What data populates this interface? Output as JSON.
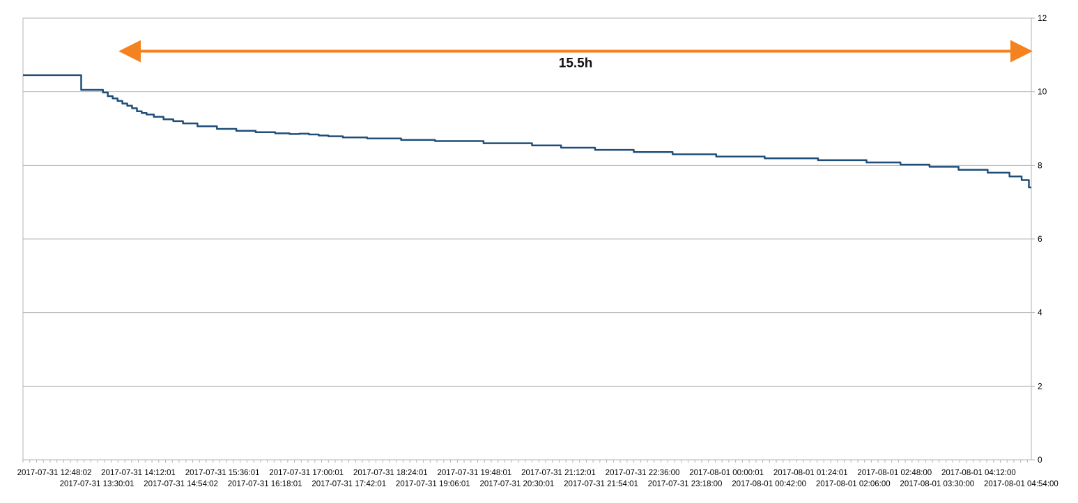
{
  "chart_data": {
    "type": "line",
    "title": "",
    "xlabel": "",
    "ylabel": "",
    "ylim": [
      0,
      12
    ],
    "y_axis_side": "right",
    "y_ticks": [
      "0",
      "2",
      "4",
      "6",
      "8",
      "10",
      "12"
    ],
    "grid": "horizontal",
    "legend": "none",
    "x_tick_labels_row1": [
      "2017-07-31 12:48:02",
      "2017-07-31 14:12:01",
      "2017-07-31 15:36:01",
      "2017-07-31 17:00:01",
      "2017-07-31 18:24:01",
      "2017-07-31 19:48:01",
      "2017-07-31 21:12:01",
      "2017-07-31 22:36:00",
      "2017-08-01 00:00:01",
      "2017-08-01 01:24:01",
      "2017-08-01 02:48:00",
      "2017-08-01 04:12:00"
    ],
    "x_tick_labels_row2": [
      "2017-07-31 13:30:01",
      "2017-07-31 14:54:02",
      "2017-07-31 16:18:01",
      "2017-07-31 17:42:01",
      "2017-07-31 19:06:01",
      "2017-07-31 20:30:01",
      "2017-07-31 21:54:01",
      "2017-07-31 23:18:00",
      "2017-08-01 00:42:00",
      "2017-08-01 02:06:00",
      "2017-08-01 03:30:00",
      "2017-08-01 04:54:00"
    ],
    "x_ticks_count": 12,
    "x": [
      "2017-07-31 11:40",
      "2017-07-31 12:20",
      "2017-07-31 13:00",
      "2017-07-31 13:05",
      "2017-07-31 13:10",
      "2017-07-31 13:15",
      "2017-07-31 13:20",
      "2017-07-31 13:25",
      "2017-07-31 13:30",
      "2017-07-31 13:35",
      "2017-07-31 13:40",
      "2017-07-31 13:45",
      "2017-07-31 13:50",
      "2017-07-31 14:00",
      "2017-07-31 14:10",
      "2017-07-31 14:20",
      "2017-07-31 14:30",
      "2017-07-31 14:50",
      "2017-07-31 15:10",
      "2017-07-31 15:30",
      "2017-07-31 15:50",
      "2017-07-31 16:10",
      "2017-07-31 16:20",
      "2017-07-31 16:30",
      "2017-07-31 16:40",
      "2017-07-31 16:50",
      "2017-07-31 17:00",
      "2017-07-31 17:20",
      "2017-07-31 17:50",
      "2017-07-31 18:30",
      "2017-07-31 19:00",
      "2017-07-31 20:10",
      "2017-07-31 20:40",
      "2017-07-31 21:10",
      "2017-07-31 21:50",
      "2017-07-31 22:30",
      "2017-07-31 23:10",
      "2017-08-01 00:00",
      "2017-08-01 00:50",
      "2017-08-01 01:50",
      "2017-08-01 02:30",
      "2017-08-01 03:00",
      "2017-08-01 03:30",
      "2017-08-01 04:00",
      "2017-08-01 04:30",
      "2017-08-01 04:45",
      "2017-08-01 04:55",
      "2017-08-01 05:00"
    ],
    "series": [
      {
        "color": "#1f4e79",
        "values": [
          10.45,
          10.45,
          10.05,
          9.98,
          9.88,
          9.82,
          9.75,
          9.68,
          9.62,
          9.55,
          9.47,
          9.42,
          9.38,
          9.32,
          9.25,
          9.2,
          9.14,
          9.06,
          8.99,
          8.94,
          8.9,
          8.87,
          8.85,
          8.86,
          8.84,
          8.81,
          8.79,
          8.76,
          8.73,
          8.69,
          8.66,
          8.6,
          8.54,
          8.48,
          8.42,
          8.36,
          8.3,
          8.24,
          8.19,
          8.14,
          8.08,
          8.02,
          7.96,
          7.88,
          7.8,
          7.7,
          7.6,
          7.4
        ]
      }
    ],
    "annotations": [
      {
        "text": "15.5h",
        "type": "double-arrow",
        "color": "#f58220",
        "y": 11.1,
        "x_from": "2017-07-31 13:20",
        "x_to": "2017-08-01 05:00"
      }
    ]
  }
}
